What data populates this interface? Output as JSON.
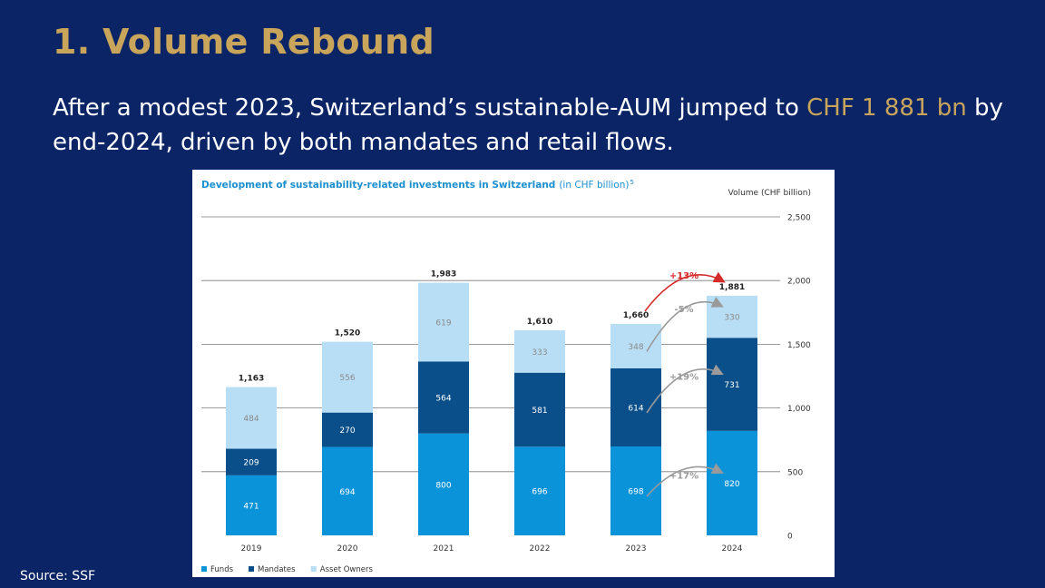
{
  "slide": {
    "title": "1. Volume Rebound",
    "subtitle_before": "After a modest 2023, Switzerland’s sustainable-AUM jumped to ",
    "subtitle_highlight": "CHF 1 881 bn",
    "subtitle_after": " by end-2024, driven by both mandates and retail flows.",
    "source": "Source: SSF"
  },
  "colors": {
    "background": "#0a2466",
    "title": "#c9a55c",
    "funds": "#0b93d9",
    "mandates": "#0a4f8a",
    "asset_owners": "#b8def5",
    "total_change": "#d42a2a",
    "segment_change": "#9a9a9a"
  },
  "chart_data": {
    "type": "bar",
    "stacked": true,
    "title": "Development of sustainability-related investments in Switzerland",
    "title_unit": "(in CHF billion)",
    "title_footnote": "5",
    "ylabel": "Volume (CHF billion)",
    "ylim": [
      0,
      2500
    ],
    "yticks": [
      0,
      500,
      1000,
      1500,
      2000,
      2500
    ],
    "ytick_labels": [
      "0",
      "500",
      "1,000",
      "1,500",
      "2,000",
      "2,500"
    ],
    "categories": [
      "2019",
      "2020",
      "2021",
      "2022",
      "2023",
      "2024"
    ],
    "series": [
      {
        "name": "Funds",
        "values": [
          471,
          694,
          800,
          696,
          698,
          820
        ]
      },
      {
        "name": "Mandates",
        "values": [
          209,
          270,
          564,
          581,
          614,
          731
        ]
      },
      {
        "name": "Asset Owners",
        "values": [
          484,
          556,
          619,
          333,
          348,
          330
        ]
      }
    ],
    "totals": [
      1163,
      1520,
      1983,
      1610,
      1660,
      1881
    ],
    "total_labels": [
      "1,163",
      "1,520",
      "1,983",
      "1,610",
      "1,660",
      "1,881"
    ],
    "legend": [
      "Funds",
      "Mandates",
      "Asset Owners"
    ],
    "legend_position": "bottom-left",
    "grid": true,
    "annotations": [
      {
        "text": "+13%",
        "from": "2023",
        "to": "2024",
        "target": "total",
        "color": "total_change"
      },
      {
        "text": "-5%",
        "from": "2023",
        "to": "2024",
        "target": "Asset Owners",
        "color": "segment_change"
      },
      {
        "text": "+19%",
        "from": "2023",
        "to": "2024",
        "target": "Mandates",
        "color": "segment_change"
      },
      {
        "text": "+17%",
        "from": "2023",
        "to": "2024",
        "target": "Funds",
        "color": "segment_change"
      }
    ]
  }
}
